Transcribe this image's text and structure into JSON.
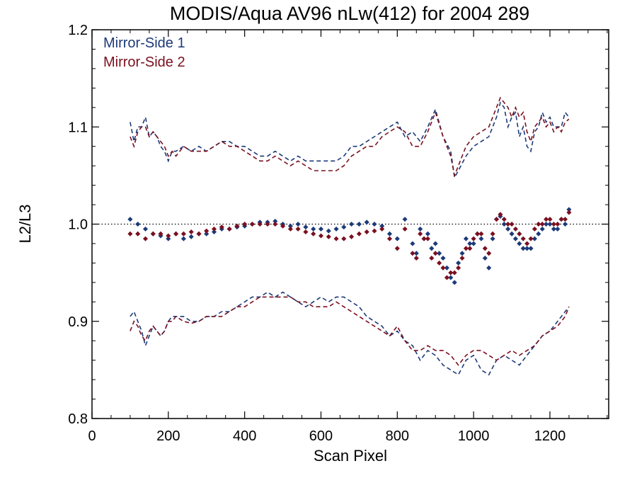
{
  "chart_data": {
    "type": "scatter",
    "title": "MODIS/Aqua AV96 nLw(412) for 2004 289",
    "xlabel": "Scan Pixel",
    "ylabel": "L2/L3",
    "xlim": [
      0,
      1354
    ],
    "ylim": [
      0.8,
      1.2
    ],
    "x_ticks": [
      "0",
      "200",
      "400",
      "600",
      "800",
      "1000",
      "1200"
    ],
    "y_ticks": [
      "0.8",
      "0.9",
      "1.0",
      "1.1",
      "1.2"
    ],
    "reference_line": {
      "y": 1.0,
      "style": "dotted"
    },
    "legend_position": "top-left",
    "series": [
      {
        "name": "Mirror-Side 1",
        "color": "#1c3a78",
        "points_x": [
          100,
          120,
          140,
          160,
          180,
          200,
          220,
          240,
          260,
          280,
          300,
          320,
          340,
          360,
          380,
          400,
          420,
          440,
          460,
          480,
          500,
          520,
          540,
          560,
          580,
          600,
          620,
          640,
          660,
          680,
          700,
          720,
          740,
          760,
          780,
          800,
          820,
          840,
          850,
          860,
          870,
          880,
          890,
          900,
          910,
          920,
          930,
          940,
          950,
          960,
          970,
          980,
          990,
          1000,
          1010,
          1020,
          1030,
          1040,
          1050,
          1060,
          1070,
          1080,
          1090,
          1100,
          1110,
          1120,
          1130,
          1140,
          1150,
          1160,
          1170,
          1180,
          1190,
          1200,
          1210,
          1220,
          1230,
          1240,
          1250
        ],
        "points_y": [
          1.005,
          1.0,
          0.995,
          0.99,
          0.988,
          0.985,
          0.99,
          0.985,
          0.987,
          0.99,
          0.99,
          0.992,
          0.995,
          0.995,
          0.997,
          0.998,
          1.0,
          1.002,
          1.002,
          1.003,
          1.0,
          0.998,
          1.0,
          0.997,
          0.995,
          0.995,
          0.993,
          0.995,
          0.997,
          1.0,
          1.0,
          1.002,
          1.0,
          0.998,
          0.99,
          0.985,
          1.005,
          0.98,
          0.97,
          0.995,
          0.985,
          0.99,
          0.975,
          0.98,
          0.97,
          0.965,
          0.955,
          0.945,
          0.94,
          0.96,
          0.97,
          0.985,
          0.98,
          0.98,
          0.99,
          0.985,
          0.965,
          0.955,
          0.985,
          1.005,
          1.008,
          1.0,
          0.995,
          0.99,
          0.985,
          0.98,
          0.975,
          0.975,
          0.975,
          0.985,
          0.99,
          0.995,
          1.0,
          1.0,
          0.995,
          0.995,
          1.005,
          1.0,
          1.015
        ],
        "upper_x": [
          100,
          110,
          120,
          130,
          140,
          150,
          160,
          170,
          180,
          190,
          200,
          210,
          220,
          240,
          260,
          280,
          300,
          320,
          340,
          360,
          380,
          400,
          420,
          440,
          460,
          480,
          500,
          520,
          540,
          560,
          580,
          600,
          620,
          640,
          660,
          680,
          700,
          720,
          740,
          760,
          780,
          800,
          820,
          840,
          860,
          880,
          900,
          920,
          940,
          950,
          960,
          980,
          1000,
          1020,
          1040,
          1060,
          1070,
          1080,
          1090,
          1100,
          1110,
          1120,
          1130,
          1140,
          1150,
          1160,
          1170,
          1180,
          1190,
          1200,
          1210,
          1220,
          1230,
          1240,
          1250
        ],
        "upper_y": [
          1.105,
          1.085,
          1.1,
          1.1,
          1.11,
          1.09,
          1.095,
          1.09,
          1.08,
          1.075,
          1.065,
          1.075,
          1.075,
          1.08,
          1.075,
          1.08,
          1.075,
          1.08,
          1.085,
          1.085,
          1.08,
          1.08,
          1.075,
          1.07,
          1.07,
          1.075,
          1.07,
          1.065,
          1.07,
          1.065,
          1.065,
          1.065,
          1.065,
          1.065,
          1.07,
          1.08,
          1.08,
          1.085,
          1.09,
          1.095,
          1.1,
          1.105,
          1.09,
          1.095,
          1.085,
          1.1,
          1.118,
          1.09,
          1.075,
          1.048,
          1.055,
          1.07,
          1.08,
          1.085,
          1.09,
          1.11,
          1.125,
          1.12,
          1.1,
          1.11,
          1.115,
          1.09,
          1.1,
          1.08,
          1.075,
          1.095,
          1.1,
          1.115,
          1.105,
          1.11,
          1.1,
          1.1,
          1.1,
          1.115,
          1.11
        ],
        "lower_x": [
          100,
          110,
          120,
          130,
          140,
          150,
          160,
          170,
          180,
          190,
          200,
          210,
          220,
          240,
          260,
          280,
          300,
          320,
          340,
          360,
          380,
          400,
          420,
          440,
          460,
          480,
          500,
          520,
          540,
          560,
          580,
          600,
          620,
          640,
          660,
          680,
          700,
          720,
          740,
          760,
          780,
          800,
          820,
          840,
          860,
          880,
          900,
          920,
          940,
          960,
          980,
          1000,
          1020,
          1040,
          1060,
          1080,
          1100,
          1120,
          1140,
          1160,
          1180,
          1200,
          1220,
          1240,
          1250
        ],
        "lower_y": [
          0.905,
          0.91,
          0.9,
          0.89,
          0.875,
          0.885,
          0.895,
          0.89,
          0.885,
          0.89,
          0.9,
          0.905,
          0.905,
          0.905,
          0.9,
          0.9,
          0.905,
          0.905,
          0.91,
          0.91,
          0.915,
          0.92,
          0.925,
          0.925,
          0.93,
          0.925,
          0.93,
          0.925,
          0.92,
          0.915,
          0.92,
          0.925,
          0.92,
          0.925,
          0.925,
          0.92,
          0.915,
          0.905,
          0.9,
          0.895,
          0.885,
          0.89,
          0.88,
          0.875,
          0.86,
          0.87,
          0.865,
          0.855,
          0.85,
          0.845,
          0.86,
          0.865,
          0.85,
          0.845,
          0.86,
          0.865,
          0.86,
          0.855,
          0.865,
          0.875,
          0.885,
          0.89,
          0.9,
          0.91,
          0.915
        ]
      },
      {
        "name": "Mirror-Side 2",
        "color": "#7a1020",
        "points_x": [
          100,
          120,
          140,
          160,
          180,
          200,
          220,
          240,
          260,
          280,
          300,
          320,
          340,
          360,
          380,
          400,
          420,
          440,
          460,
          480,
          500,
          520,
          540,
          560,
          580,
          600,
          620,
          640,
          660,
          680,
          700,
          720,
          740,
          760,
          780,
          800,
          820,
          840,
          850,
          860,
          870,
          880,
          890,
          900,
          910,
          920,
          930,
          940,
          950,
          960,
          970,
          980,
          990,
          1000,
          1010,
          1020,
          1030,
          1040,
          1050,
          1060,
          1070,
          1080,
          1090,
          1100,
          1110,
          1120,
          1130,
          1140,
          1150,
          1160,
          1170,
          1180,
          1190,
          1200,
          1210,
          1220,
          1230,
          1240,
          1250
        ],
        "points_y": [
          0.99,
          0.99,
          0.985,
          0.99,
          0.99,
          0.988,
          0.99,
          0.99,
          0.992,
          0.99,
          0.993,
          0.995,
          0.997,
          0.995,
          0.998,
          1.0,
          1.0,
          1.0,
          1.0,
          1.0,
          0.998,
          0.995,
          0.995,
          0.992,
          0.99,
          0.988,
          0.987,
          0.985,
          0.985,
          0.987,
          0.99,
          0.992,
          0.993,
          0.995,
          0.985,
          0.975,
          0.995,
          0.97,
          0.965,
          0.99,
          0.985,
          0.985,
          0.965,
          0.97,
          0.96,
          0.955,
          0.945,
          0.95,
          0.95,
          0.955,
          0.965,
          0.975,
          0.975,
          0.985,
          0.99,
          0.99,
          0.975,
          0.97,
          0.99,
          1.005,
          1.01,
          1.005,
          1.0,
          1.0,
          0.995,
          0.99,
          0.985,
          0.98,
          0.985,
          0.995,
          1.0,
          1.0,
          1.005,
          1.005,
          1.0,
          1.0,
          1.005,
          1.005,
          1.012
        ],
        "upper_x": [
          100,
          110,
          120,
          130,
          140,
          150,
          160,
          170,
          180,
          190,
          200,
          210,
          220,
          240,
          260,
          280,
          300,
          320,
          340,
          360,
          380,
          400,
          420,
          440,
          460,
          480,
          500,
          520,
          540,
          560,
          580,
          600,
          620,
          640,
          660,
          680,
          700,
          720,
          740,
          760,
          780,
          800,
          820,
          840,
          860,
          880,
          900,
          920,
          940,
          950,
          960,
          980,
          1000,
          1020,
          1040,
          1060,
          1070,
          1080,
          1090,
          1100,
          1110,
          1120,
          1130,
          1140,
          1150,
          1160,
          1170,
          1180,
          1190,
          1200,
          1210,
          1220,
          1230,
          1240,
          1250
        ],
        "upper_y": [
          1.09,
          1.08,
          1.095,
          1.1,
          1.1,
          1.09,
          1.095,
          1.09,
          1.085,
          1.08,
          1.07,
          1.075,
          1.07,
          1.08,
          1.075,
          1.075,
          1.075,
          1.08,
          1.085,
          1.08,
          1.08,
          1.075,
          1.07,
          1.065,
          1.065,
          1.07,
          1.065,
          1.06,
          1.065,
          1.06,
          1.055,
          1.055,
          1.055,
          1.055,
          1.06,
          1.07,
          1.075,
          1.08,
          1.08,
          1.09,
          1.095,
          1.1,
          1.095,
          1.08,
          1.08,
          1.095,
          1.115,
          1.09,
          1.07,
          1.05,
          1.06,
          1.08,
          1.09,
          1.095,
          1.1,
          1.12,
          1.13,
          1.125,
          1.12,
          1.11,
          1.12,
          1.11,
          1.115,
          1.095,
          1.085,
          1.1,
          1.105,
          1.11,
          1.1,
          1.105,
          1.095,
          1.1,
          1.095,
          1.105,
          1.108
        ],
        "lower_x": [
          100,
          110,
          120,
          130,
          140,
          150,
          160,
          170,
          180,
          190,
          200,
          210,
          220,
          240,
          260,
          280,
          300,
          320,
          340,
          360,
          380,
          400,
          420,
          440,
          460,
          480,
          500,
          520,
          540,
          560,
          580,
          600,
          620,
          640,
          660,
          680,
          700,
          720,
          740,
          760,
          780,
          800,
          820,
          840,
          860,
          880,
          900,
          920,
          940,
          960,
          980,
          1000,
          1020,
          1040,
          1060,
          1080,
          1100,
          1120,
          1140,
          1160,
          1180,
          1200,
          1220,
          1240,
          1250
        ],
        "lower_y": [
          0.89,
          0.9,
          0.895,
          0.885,
          0.88,
          0.89,
          0.895,
          0.89,
          0.885,
          0.89,
          0.9,
          0.9,
          0.905,
          0.9,
          0.898,
          0.9,
          0.905,
          0.905,
          0.905,
          0.91,
          0.915,
          0.915,
          0.92,
          0.925,
          0.925,
          0.925,
          0.925,
          0.925,
          0.92,
          0.92,
          0.915,
          0.915,
          0.915,
          0.92,
          0.915,
          0.91,
          0.905,
          0.9,
          0.895,
          0.89,
          0.885,
          0.895,
          0.88,
          0.87,
          0.87,
          0.875,
          0.87,
          0.87,
          0.865,
          0.855,
          0.865,
          0.87,
          0.87,
          0.865,
          0.86,
          0.865,
          0.87,
          0.865,
          0.87,
          0.875,
          0.885,
          0.89,
          0.895,
          0.905,
          0.915
        ]
      }
    ]
  }
}
